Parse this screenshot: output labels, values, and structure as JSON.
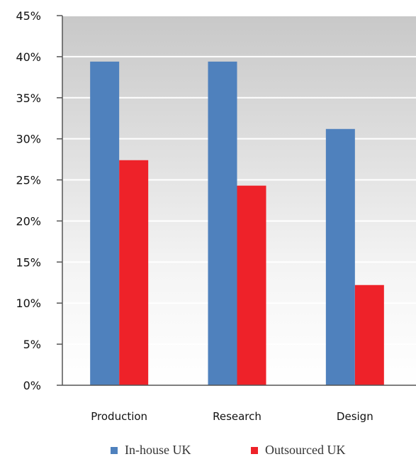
{
  "chart_data": {
    "type": "bar",
    "categories": [
      "Production",
      "Research",
      "Design"
    ],
    "series": [
      {
        "name": "In-house UK",
        "values": [
          39.4,
          39.4,
          31.2
        ],
        "color": "#4f81bd"
      },
      {
        "name": "Outsourced UK",
        "values": [
          27.4,
          24.3,
          12.2
        ],
        "color": "#ee2229"
      }
    ],
    "y_ticks": [
      "0%",
      "5%",
      "10%",
      "15%",
      "20%",
      "25%",
      "30%",
      "35%",
      "40%",
      "45%"
    ],
    "ylim": [
      0,
      45
    ],
    "grid": true,
    "legend_position": "bottom"
  }
}
